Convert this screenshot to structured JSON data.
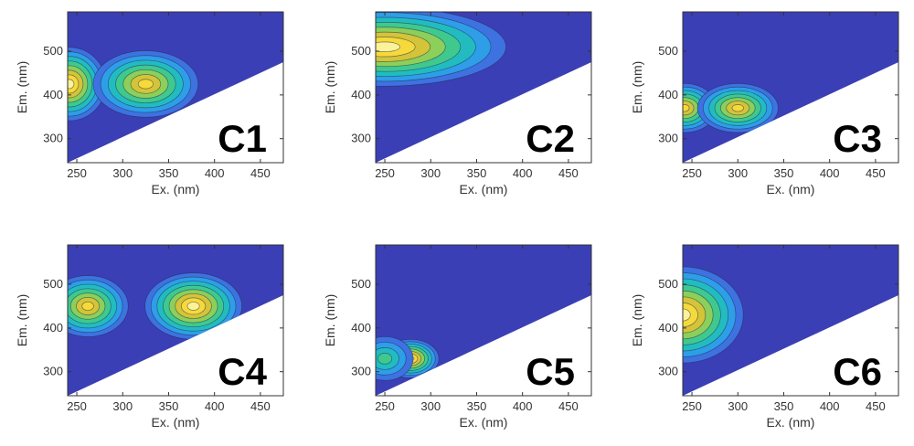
{
  "figure": {
    "colors": {
      "background_contour": "#3b3fb5",
      "colormap": [
        "#3b3fb5",
        "#3d72e0",
        "#2e9ee8",
        "#22bcc0",
        "#3fc98f",
        "#8ccf5a",
        "#d4c43a",
        "#f6d93a",
        "#fbf29a"
      ]
    }
  },
  "chart_data": [
    {
      "type": "heatmap",
      "panel_label": "C1",
      "xlabel": "Ex. (nm)",
      "ylabel": "Em. (nm)",
      "xlim": [
        240,
        475
      ],
      "ylim": [
        245,
        590
      ],
      "x_ticks": [
        250,
        300,
        350,
        400,
        450
      ],
      "y_ticks": [
        300,
        400,
        500
      ],
      "peaks": [
        {
          "ex": 242,
          "em": 425,
          "intensity": 1.0,
          "sx": 18,
          "sy": 42
        },
        {
          "ex": 325,
          "em": 425,
          "intensity": 0.85,
          "sx": 26,
          "sy": 38
        }
      ],
      "contour_extent": {
        "ex_max": 380,
        "em_min": 360,
        "em_max": 520
      }
    },
    {
      "type": "heatmap",
      "panel_label": "C2",
      "xlabel": "Ex. (nm)",
      "ylabel": "Em. (nm)",
      "xlim": [
        240,
        475
      ],
      "ylim": [
        245,
        590
      ],
      "x_ticks": [
        250,
        300,
        350,
        400,
        450
      ],
      "y_ticks": [
        300,
        400,
        500
      ],
      "peaks": [
        {
          "ex": 250,
          "em": 510,
          "intensity": 1.0,
          "sx": 60,
          "sy": 45
        }
      ],
      "contour_extent": {
        "ex_max": 465,
        "em_min": 450,
        "em_max": 590
      }
    },
    {
      "type": "heatmap",
      "panel_label": "C3",
      "xlabel": "Ex. (nm)",
      "ylabel": "Em. (nm)",
      "xlim": [
        240,
        475
      ],
      "ylim": [
        245,
        590
      ],
      "x_ticks": [
        250,
        300,
        350,
        400,
        450
      ],
      "y_ticks": [
        300,
        400,
        500
      ],
      "peaks": [
        {
          "ex": 242,
          "em": 370,
          "intensity": 0.9,
          "sx": 16,
          "sy": 28
        },
        {
          "ex": 300,
          "em": 370,
          "intensity": 0.85,
          "sx": 20,
          "sy": 28
        }
      ],
      "contour_extent": {
        "ex_max": 345,
        "em_min": 330,
        "em_max": 420
      }
    },
    {
      "type": "heatmap",
      "panel_label": "C4",
      "xlabel": "Ex. (nm)",
      "ylabel": "Em. (nm)",
      "xlim": [
        240,
        475
      ],
      "ylim": [
        245,
        590
      ],
      "x_ticks": [
        250,
        300,
        350,
        400,
        450
      ],
      "y_ticks": [
        300,
        400,
        500
      ],
      "peaks": [
        {
          "ex": 262,
          "em": 450,
          "intensity": 0.9,
          "sx": 20,
          "sy": 35
        },
        {
          "ex": 377,
          "em": 450,
          "intensity": 1.0,
          "sx": 24,
          "sy": 38
        }
      ],
      "contour_extent": {
        "ex_max": 415,
        "em_min": 380,
        "em_max": 535
      }
    },
    {
      "type": "heatmap",
      "panel_label": "C5",
      "xlabel": "Ex. (nm)",
      "ylabel": "Em. (nm)",
      "xlim": [
        240,
        475
      ],
      "ylim": [
        245,
        590
      ],
      "x_ticks": [
        250,
        300,
        350,
        400,
        450
      ],
      "y_ticks": [
        300,
        400,
        500
      ],
      "peaks": [
        {
          "ex": 278,
          "em": 330,
          "intensity": 1.0,
          "sx": 14,
          "sy": 22
        },
        {
          "ex": 250,
          "em": 330,
          "intensity": 0.45,
          "sx": 14,
          "sy": 25
        }
      ],
      "contour_extent": {
        "ex_max": 302,
        "em_min": 285,
        "em_max": 375
      }
    },
    {
      "type": "heatmap",
      "panel_label": "C6",
      "xlabel": "Ex. (nm)",
      "ylabel": "Em. (nm)",
      "xlim": [
        240,
        475
      ],
      "ylim": [
        245,
        590
      ],
      "x_ticks": [
        250,
        300,
        350,
        400,
        450
      ],
      "y_ticks": [
        300,
        400,
        500
      ],
      "peaks": [
        {
          "ex": 240,
          "em": 430,
          "intensity": 1.0,
          "sx": 30,
          "sy": 55
        }
      ],
      "contour_extent": {
        "ex_max": 315,
        "em_min": 330,
        "em_max": 560
      }
    }
  ]
}
